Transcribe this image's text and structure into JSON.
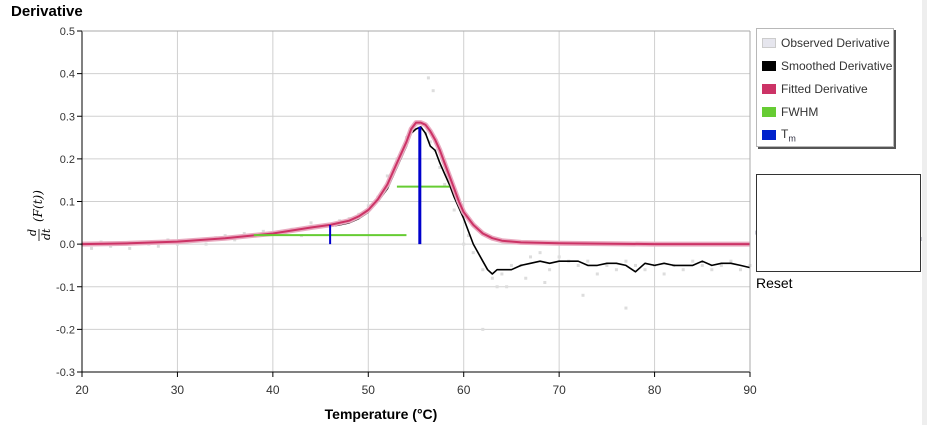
{
  "chart_data": {
    "type": "line",
    "title": "Derivative",
    "xlabel": "Temperature (°C)",
    "ylabel": "d/dt (F(t))",
    "xlim": [
      20,
      90
    ],
    "ylim": [
      -0.3,
      0.5
    ],
    "x_ticks": [
      "20",
      "30",
      "40",
      "50",
      "60",
      "70",
      "80",
      "90"
    ],
    "y_ticks": [
      "0.5",
      "0.4",
      "0.3",
      "0.2",
      "0.1",
      "0.0",
      "-0.1",
      "-0.2",
      "-0.3"
    ],
    "grid": true,
    "legend_position": "right",
    "series": [
      {
        "name": "Observed Derivative",
        "style": "scatter",
        "color": "#dddddd",
        "x": [
          20,
          21,
          22,
          23,
          24,
          25,
          26,
          27,
          28,
          29,
          30,
          31,
          32,
          33,
          34,
          35,
          36,
          37,
          38,
          39,
          40,
          41,
          42,
          43,
          44,
          45,
          46,
          47,
          48,
          49,
          50,
          51,
          52,
          53,
          54,
          54.5,
          55,
          55.5,
          56,
          56.5,
          57,
          57.5,
          58,
          59,
          60,
          61,
          62,
          63,
          64,
          65,
          66,
          67,
          68,
          69,
          70,
          71,
          72,
          73,
          74,
          75,
          76,
          77,
          78,
          79,
          80,
          81,
          82,
          83,
          84,
          85,
          86,
          87,
          88,
          89,
          90,
          56.3,
          56.8,
          60.5,
          63.5,
          66.5,
          64.5,
          68.5,
          72.5,
          77,
          62
        ],
        "y": [
          0.0,
          -0.01,
          0.005,
          -0.005,
          0.0,
          -0.01,
          0.005,
          0.0,
          -0.005,
          0.01,
          0.0,
          0.005,
          0.01,
          0.0,
          0.015,
          0.02,
          0.01,
          0.025,
          0.02,
          0.03,
          0.025,
          0.03,
          0.035,
          0.02,
          0.05,
          0.04,
          0.045,
          0.055,
          0.06,
          0.07,
          0.09,
          0.11,
          0.16,
          0.2,
          0.25,
          0.27,
          0.28,
          0.27,
          0.26,
          0.24,
          0.22,
          0.18,
          0.14,
          0.08,
          0.0,
          -0.02,
          -0.06,
          -0.08,
          -0.07,
          -0.05,
          -0.05,
          -0.03,
          -0.02,
          -0.06,
          -0.03,
          -0.04,
          -0.05,
          -0.04,
          -0.07,
          -0.05,
          -0.06,
          -0.04,
          -0.05,
          -0.06,
          -0.05,
          -0.07,
          -0.05,
          -0.06,
          -0.04,
          -0.05,
          -0.06,
          -0.05,
          -0.04,
          -0.06,
          -0.05,
          0.39,
          0.36,
          0.02,
          -0.1,
          -0.08,
          -0.1,
          -0.09,
          -0.12,
          -0.15,
          -0.2
        ]
      },
      {
        "name": "Smoothed Derivative",
        "style": "line",
        "color": "#000000",
        "x": [
          20,
          22,
          24,
          26,
          28,
          30,
          32,
          34,
          36,
          38,
          40,
          42,
          44,
          45,
          46,
          47,
          48,
          49,
          50,
          51,
          52,
          53,
          54,
          54.5,
          55,
          55.5,
          56,
          56.5,
          57,
          57.5,
          58,
          58.5,
          59,
          60,
          61,
          62,
          62.5,
          63,
          63.5,
          64,
          65,
          66,
          67,
          68,
          69,
          70,
          71,
          72,
          73,
          74,
          75,
          76,
          77,
          78,
          79,
          80,
          81,
          82,
          83,
          84,
          85,
          86,
          87,
          88,
          89,
          90
        ],
        "y": [
          0.0,
          0.0,
          0.001,
          0.0,
          0.003,
          0.005,
          0.008,
          0.012,
          0.015,
          0.02,
          0.025,
          0.03,
          0.037,
          0.04,
          0.042,
          0.045,
          0.05,
          0.06,
          0.075,
          0.1,
          0.13,
          0.18,
          0.23,
          0.26,
          0.27,
          0.275,
          0.26,
          0.23,
          0.22,
          0.19,
          0.165,
          0.14,
          0.11,
          0.06,
          0.0,
          -0.04,
          -0.06,
          -0.07,
          -0.06,
          -0.06,
          -0.06,
          -0.05,
          -0.045,
          -0.04,
          -0.045,
          -0.04,
          -0.04,
          -0.04,
          -0.05,
          -0.05,
          -0.045,
          -0.045,
          -0.05,
          -0.065,
          -0.045,
          -0.05,
          -0.045,
          -0.05,
          -0.05,
          -0.05,
          -0.04,
          -0.05,
          -0.045,
          -0.045,
          -0.05,
          -0.055
        ]
      },
      {
        "name": "Fitted Derivative",
        "style": "line",
        "color": "#cc3366",
        "x": [
          20,
          25,
          30,
          35,
          40,
          42,
          44,
          46,
          48,
          49,
          50,
          51,
          52,
          53,
          54,
          54.5,
          55,
          55.5,
          56,
          56.5,
          57,
          57.5,
          58,
          58.5,
          59,
          59.5,
          60,
          61,
          62,
          63,
          64,
          66,
          70,
          80,
          90
        ],
        "y": [
          0.0,
          0.002,
          0.006,
          0.014,
          0.025,
          0.032,
          0.039,
          0.045,
          0.055,
          0.065,
          0.08,
          0.105,
          0.14,
          0.19,
          0.24,
          0.27,
          0.285,
          0.285,
          0.28,
          0.265,
          0.245,
          0.22,
          0.19,
          0.16,
          0.13,
          0.1,
          0.075,
          0.045,
          0.025,
          0.014,
          0.008,
          0.004,
          0.002,
          0.0,
          0.0
        ]
      },
      {
        "name": "FWHM",
        "style": "segments",
        "color": "#66cc33",
        "segments": [
          {
            "x": [
              38,
              54
            ],
            "y": [
              0.021,
              0.021
            ]
          },
          {
            "x": [
              53,
              58.5
            ],
            "y": [
              0.135,
              0.135
            ]
          }
        ]
      },
      {
        "name": "Tm",
        "style": "segments",
        "color": "#0000cc",
        "segments": [
          {
            "x": [
              55.4,
              55.4
            ],
            "y": [
              0.0,
              0.275
            ]
          },
          {
            "x": [
              46,
              46
            ],
            "y": [
              0.0,
              0.045
            ]
          }
        ]
      }
    ]
  },
  "legend": {
    "items": [
      {
        "label": "Observed Derivative",
        "color": "#e6e6ee"
      },
      {
        "label": "Smoothed Derivative",
        "color": "#000000"
      },
      {
        "label": "Fitted Derivative",
        "color": "#cc3366"
      },
      {
        "label": "FWHM",
        "color": "#66cc33"
      },
      {
        "label_main": "T",
        "label_sub": "m",
        "color": "#0022cc"
      }
    ]
  },
  "range_selector": {
    "reset_label": "Reset"
  }
}
